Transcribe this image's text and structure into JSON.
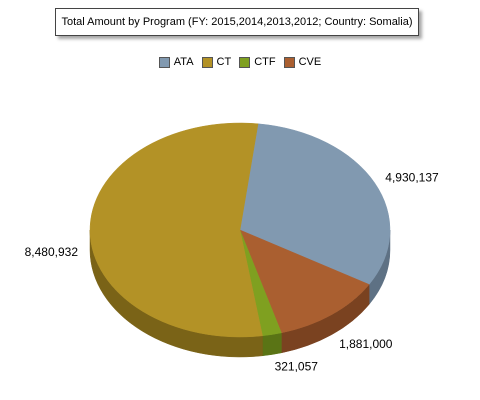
{
  "chart_data": {
    "type": "pie",
    "title": "Total Amount by Program (FY: 2015,2014,2013,2012; Country: Somalia)",
    "legend_position": "top",
    "categories": [
      "ATA",
      "CT",
      "CTF",
      "CVE"
    ],
    "values": [
      4930137,
      8480932,
      321057,
      1881000
    ],
    "value_labels": [
      "4,930,137",
      "8,480,932",
      "321,057",
      "1,881,000"
    ],
    "colors": [
      "#8199b0",
      "#b39226",
      "#7fa020",
      "#aa5f30"
    ],
    "side_colors": [
      "#5e7184",
      "#7a6317",
      "#5a7415",
      "#7a4220"
    ],
    "draw_order": [
      0,
      3,
      2,
      1
    ],
    "three_d": true
  }
}
